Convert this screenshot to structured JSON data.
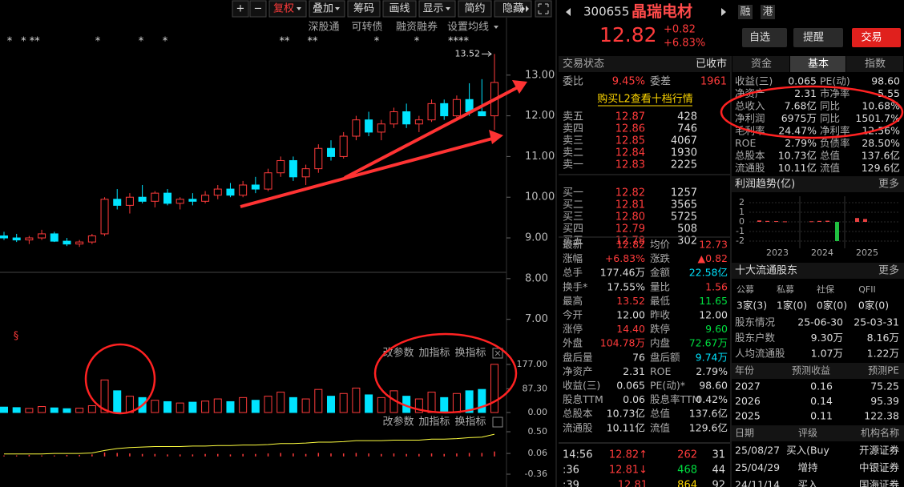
{
  "toolbar": [
    "+",
    "−",
    "复权",
    "叠加",
    "筹码",
    "画线",
    "显示",
    "简约",
    "隐藏"
  ],
  "sub_toolbar": [
    "深股通",
    "可转债",
    "融资融券",
    "设置均线"
  ],
  "markers": [
    "*",
    "* **",
    "*",
    "*",
    "*",
    "**",
    "**",
    "*",
    "*",
    "****"
  ],
  "signal_mark": "§",
  "price_chart": {
    "type": "candlestick",
    "high_label": "13.52",
    "ylim": [
      6.58,
      13.96
    ],
    "yticks": [
      {
        "value": 13,
        "label": "13.00"
      },
      {
        "value": 12,
        "label": "12.00"
      },
      {
        "value": 11,
        "label": "11.00"
      },
      {
        "value": 10,
        "label": "10.00"
      },
      {
        "value": 9,
        "label": "9.00"
      },
      {
        "value": 8,
        "label": "8.00"
      },
      {
        "value": 7,
        "label": "7.00"
      }
    ],
    "candles": [
      {
        "o": 9.05,
        "h": 9.15,
        "l": 8.95,
        "c": 9.0
      },
      {
        "o": 9.0,
        "h": 9.1,
        "l": 8.9,
        "c": 8.95
      },
      {
        "o": 8.95,
        "h": 9.05,
        "l": 8.85,
        "c": 9.0
      },
      {
        "o": 9.0,
        "h": 9.2,
        "l": 8.95,
        "c": 9.1
      },
      {
        "o": 9.1,
        "h": 9.15,
        "l": 8.9,
        "c": 8.92
      },
      {
        "o": 8.92,
        "h": 9.0,
        "l": 8.8,
        "c": 8.85
      },
      {
        "o": 8.85,
        "h": 8.95,
        "l": 8.78,
        "c": 8.9
      },
      {
        "o": 8.9,
        "h": 9.1,
        "l": 8.85,
        "c": 9.05
      },
      {
        "o": 9.1,
        "h": 10.0,
        "l": 9.05,
        "c": 9.95
      },
      {
        "o": 9.95,
        "h": 10.2,
        "l": 9.7,
        "c": 9.8
      },
      {
        "o": 9.8,
        "h": 10.1,
        "l": 9.6,
        "c": 10.0
      },
      {
        "o": 10.0,
        "h": 10.3,
        "l": 9.85,
        "c": 9.9
      },
      {
        "o": 9.9,
        "h": 10.15,
        "l": 9.75,
        "c": 10.1
      },
      {
        "o": 10.1,
        "h": 10.2,
        "l": 9.8,
        "c": 9.85
      },
      {
        "o": 9.85,
        "h": 10.0,
        "l": 9.7,
        "c": 9.95
      },
      {
        "o": 9.95,
        "h": 10.1,
        "l": 9.8,
        "c": 9.9
      },
      {
        "o": 9.9,
        "h": 10.15,
        "l": 9.85,
        "c": 10.05
      },
      {
        "o": 10.05,
        "h": 10.3,
        "l": 9.95,
        "c": 10.2
      },
      {
        "o": 10.2,
        "h": 10.35,
        "l": 10.0,
        "c": 10.05
      },
      {
        "o": 10.05,
        "h": 10.4,
        "l": 10.0,
        "c": 10.3
      },
      {
        "o": 10.3,
        "h": 10.5,
        "l": 10.1,
        "c": 10.2
      },
      {
        "o": 10.2,
        "h": 10.7,
        "l": 10.15,
        "c": 10.6
      },
      {
        "o": 10.6,
        "h": 11.0,
        "l": 10.5,
        "c": 10.9
      },
      {
        "o": 10.9,
        "h": 11.0,
        "l": 10.4,
        "c": 10.5
      },
      {
        "o": 10.5,
        "h": 10.8,
        "l": 10.3,
        "c": 10.7
      },
      {
        "o": 10.7,
        "h": 11.3,
        "l": 10.6,
        "c": 11.2
      },
      {
        "o": 11.2,
        "h": 11.4,
        "l": 10.9,
        "c": 11.0
      },
      {
        "o": 11.0,
        "h": 11.6,
        "l": 10.95,
        "c": 11.5
      },
      {
        "o": 11.5,
        "h": 12.0,
        "l": 11.4,
        "c": 11.9
      },
      {
        "o": 11.9,
        "h": 12.1,
        "l": 11.5,
        "c": 11.6
      },
      {
        "o": 11.6,
        "h": 11.9,
        "l": 11.4,
        "c": 11.8
      },
      {
        "o": 11.8,
        "h": 12.2,
        "l": 11.7,
        "c": 12.1
      },
      {
        "o": 12.1,
        "h": 12.3,
        "l": 11.7,
        "c": 11.8
      },
      {
        "o": 11.8,
        "h": 12.0,
        "l": 11.6,
        "c": 11.9
      },
      {
        "o": 11.9,
        "h": 12.4,
        "l": 11.85,
        "c": 12.3
      },
      {
        "o": 12.3,
        "h": 12.4,
        "l": 11.9,
        "c": 12.0
      },
      {
        "o": 12.0,
        "h": 12.5,
        "l": 11.95,
        "c": 12.4
      },
      {
        "o": 12.4,
        "h": 12.8,
        "l": 12.0,
        "c": 12.1
      },
      {
        "o": 12.1,
        "h": 12.9,
        "l": 12.0,
        "c": 12.0
      },
      {
        "o": 12.0,
        "h": 13.52,
        "l": 11.65,
        "c": 12.82
      }
    ]
  },
  "volume_panel": {
    "buttons": [
      "改参数",
      "加指标",
      "换指标"
    ],
    "ylim": [
      0,
      177
    ],
    "yticks": [
      {
        "value": 177,
        "label": "177.00"
      },
      {
        "value": 87.3,
        "label": "87.30"
      },
      {
        "value": 0,
        "label": "0.00"
      }
    ],
    "values": [
      20,
      18,
      15,
      22,
      17,
      14,
      16,
      25,
      120,
      80,
      60,
      55,
      45,
      40,
      35,
      38,
      42,
      50,
      40,
      55,
      45,
      60,
      75,
      55,
      50,
      85,
      60,
      70,
      90,
      65,
      55,
      80,
      60,
      50,
      75,
      55,
      70,
      80,
      85,
      177.46
    ]
  },
  "macd_panel": {
    "buttons": [
      "改参数",
      "加指标",
      "换指标"
    ],
    "ylim": [
      -0.36,
      0.5
    ],
    "yticks": [
      {
        "value": 0.5,
        "label": "0.50"
      },
      0.06,
      -0.36
    ],
    "histogram": [
      0.02,
      0.02,
      0.03,
      0.02,
      0.02,
      0.03,
      0.03,
      0.04,
      0.08,
      0.07,
      0.06,
      0.05,
      0.05,
      0.04,
      0.04,
      0.04,
      0.05,
      0.05,
      0.04,
      0.05,
      0.05,
      0.06,
      0.07,
      0.06,
      0.05,
      0.07,
      0.06,
      0.06,
      0.07,
      0.06,
      0.05,
      0.06,
      0.05,
      0.05,
      0.06,
      0.05,
      0.06,
      0.07,
      0.07,
      0.1
    ],
    "dif": [
      0.05,
      0.05,
      0.05,
      0.05,
      0.06,
      0.06,
      0.06,
      0.07,
      0.12,
      0.16,
      0.18,
      0.19,
      0.2,
      0.2,
      0.2,
      0.21,
      0.21,
      0.22,
      0.22,
      0.23,
      0.23,
      0.24,
      0.26,
      0.26,
      0.27,
      0.29,
      0.29,
      0.3,
      0.32,
      0.32,
      0.32,
      0.33,
      0.33,
      0.33,
      0.35,
      0.35,
      0.36,
      0.38,
      0.39,
      0.45
    ]
  },
  "quote_header": {
    "code": "300655",
    "name": "晶瑞电材",
    "tags": [
      "融",
      "港"
    ],
    "price": "12.82",
    "change": "+0.82",
    "change_pct": "+6.83%",
    "buttons": [
      "自选",
      "提醒",
      "交易"
    ]
  },
  "trade_status": {
    "label": "交易状态",
    "value": "已收市"
  },
  "bid_ratio": [
    "委比",
    "9.45%",
    "委差",
    "1961"
  ],
  "l2_link": "购买L2查看十档行情",
  "order_book": [
    [
      "卖五",
      "12.87",
      "428"
    ],
    [
      "卖四",
      "12.86",
      "746"
    ],
    [
      "卖三",
      "12.85",
      "4067"
    ],
    [
      "卖二",
      "12.84",
      "1930"
    ],
    [
      "卖一",
      "12.83",
      "2225"
    ],
    [
      "买一",
      "12.82",
      "1257"
    ],
    [
      "买二",
      "12.81",
      "3565"
    ],
    [
      "买三",
      "12.80",
      "5725"
    ],
    [
      "买四",
      "12.79",
      "508"
    ],
    [
      "买五",
      "12.78",
      "302"
    ]
  ],
  "quote_stats": [
    [
      "最新",
      "12.82",
      "均价",
      "12.73"
    ],
    [
      "涨幅",
      "+6.83%",
      "涨跌",
      "▲0.82"
    ],
    [
      "总手",
      "177.46万",
      "金额",
      "22.58亿"
    ],
    [
      "换手*",
      "17.55%",
      "量比",
      "1.56"
    ],
    [
      "最高",
      "13.52",
      "最低",
      "11.65"
    ],
    [
      "今开",
      "12.00",
      "昨收",
      "12.00"
    ],
    [
      "涨停",
      "14.40",
      "跌停",
      "9.60"
    ],
    [
      "外盘",
      "104.78万",
      "内盘",
      "72.67万"
    ],
    [
      "盘后量",
      "76",
      "盘后额",
      "9.74万"
    ],
    [
      "净资产",
      "2.31",
      "ROE",
      "2.79%"
    ],
    [
      "收益(三)",
      "0.065",
      "PE(动)*",
      "98.60"
    ],
    [
      "股息TTM",
      "0.06",
      "股息率TTM",
      "0.42%"
    ],
    [
      "总股本",
      "10.73亿",
      "总值",
      "137.6亿"
    ],
    [
      "流通股",
      "10.11亿",
      "流值",
      "129.6亿"
    ]
  ],
  "ticks": [
    [
      "14:56",
      "12.82↑",
      "262",
      "31"
    ],
    [
      ":36",
      "12.81↓",
      "468",
      "44"
    ],
    [
      ":39",
      "12.81",
      "864",
      "92"
    ]
  ],
  "tabs": [
    "资金",
    "基本",
    "指数"
  ],
  "fundamentals": [
    [
      "收益(三)",
      "0.065",
      "PE(动)",
      "98.60"
    ],
    [
      "净资产",
      "2.31",
      "市净率",
      "5.55"
    ],
    [
      "总收入",
      "7.68亿",
      "同比",
      "10.68%"
    ],
    [
      "净利润",
      "6975万",
      "同比",
      "1501.7%"
    ],
    [
      "毛利率",
      "24.47%",
      "净利率",
      "12.56%"
    ],
    [
      "ROE",
      "2.79%",
      "负债率",
      "28.50%"
    ],
    [
      "总股本",
      "10.73亿",
      "总值",
      "137.6亿"
    ],
    [
      "流通股",
      "10.11亿",
      "流值",
      "129.6亿"
    ]
  ],
  "profit_trend": {
    "title": "利润趋势(亿)",
    "more": "更多",
    "ylim": [
      -2.5,
      2.5
    ],
    "yticks": [
      2,
      1,
      0,
      -1,
      -2
    ],
    "x_labels": [
      "2023",
      "2024",
      "2025"
    ],
    "values": [
      0.15,
      0.1,
      0.08,
      0.05,
      0.06,
      0.1,
      0.12,
      -2.0,
      0.4,
      0.3
    ]
  },
  "holders": {
    "title": "十大流通股东",
    "more": "更多",
    "types": [
      "公募",
      "私募",
      "社保",
      "QFII"
    ],
    "counts": [
      "3家(3)",
      "1家(0)",
      "0家(0)",
      "0家(0)"
    ],
    "rows": [
      [
        "股东情况",
        "25-06-30",
        "25-03-31"
      ],
      [
        "股东户数",
        "9.30万",
        "8.16万"
      ],
      [
        "人均流通股",
        "1.07万",
        "1.22万"
      ]
    ]
  },
  "forecast": {
    "header": [
      "年份",
      "预测收益",
      "预测PE"
    ],
    "rows": [
      [
        "2027",
        "0.16",
        "75.25"
      ],
      [
        "2026",
        "0.14",
        "95.39"
      ],
      [
        "2025",
        "0.11",
        "122.38"
      ]
    ]
  },
  "ratings": {
    "header": [
      "日期",
      "评级",
      "机构名称"
    ],
    "rows": [
      [
        "25/08/27",
        "买入(Buy",
        "开源证券"
      ],
      [
        "25/04/29",
        "增持",
        "中银证券"
      ],
      [
        "24/11/14",
        "买入",
        "国海证券"
      ]
    ]
  }
}
